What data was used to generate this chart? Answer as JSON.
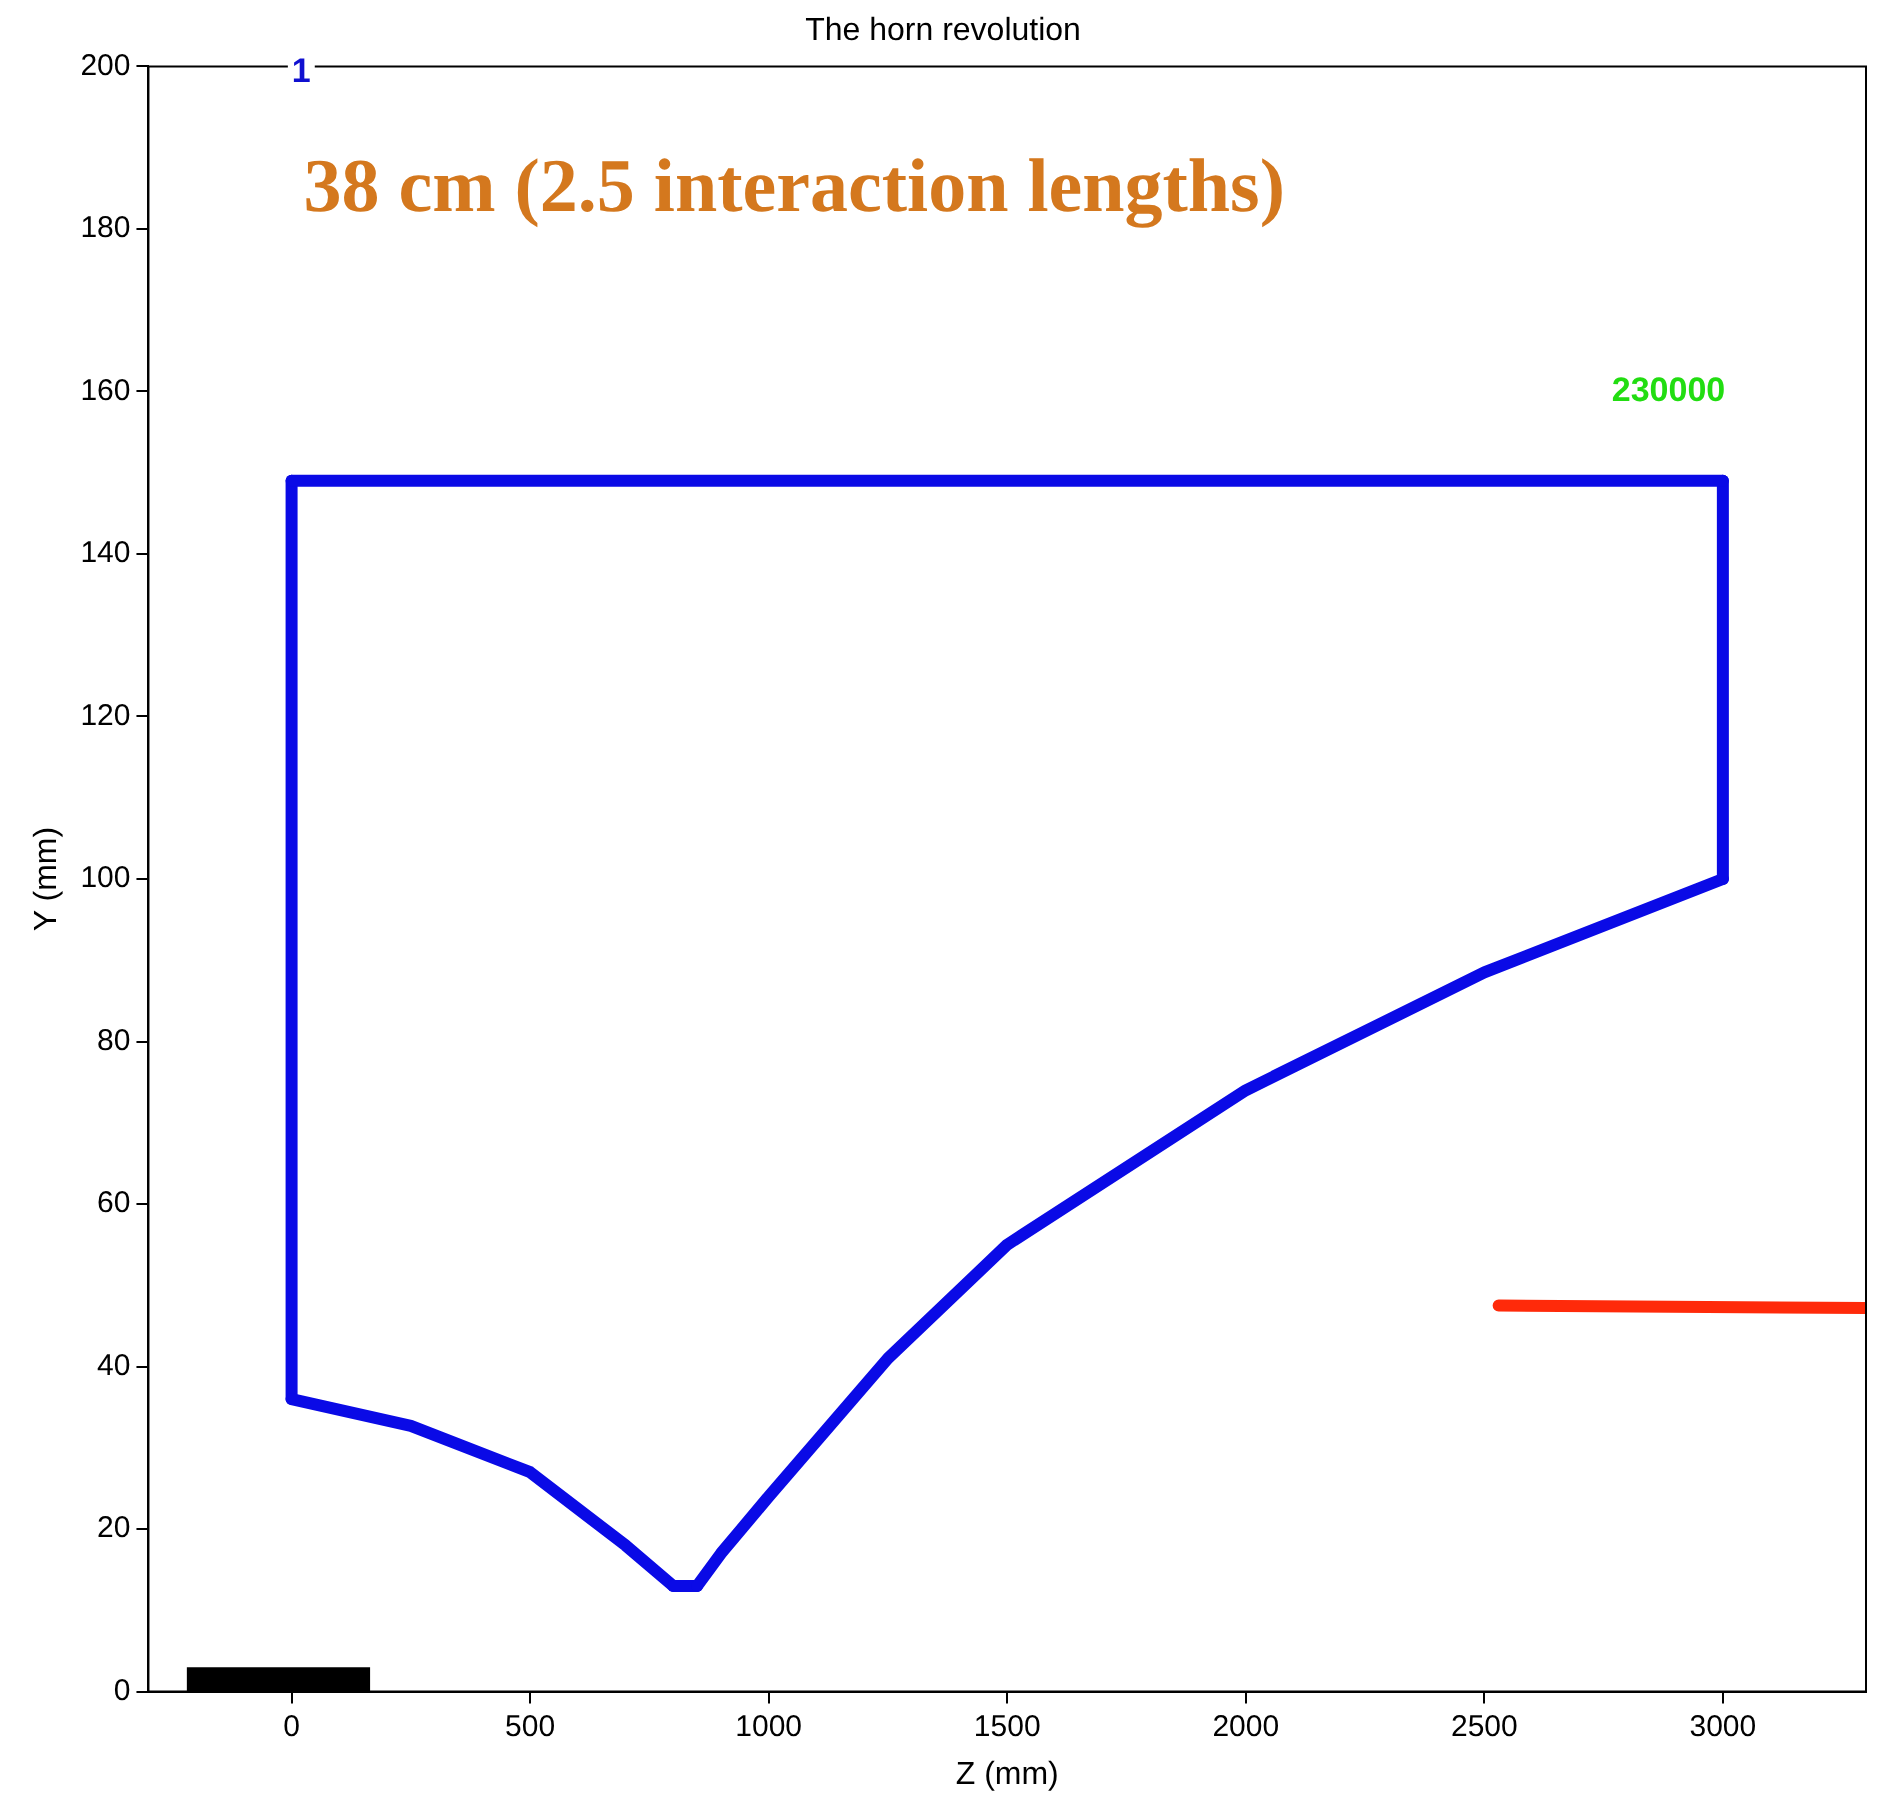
{
  "chart_data": {
    "type": "line",
    "title": "The horn revolution",
    "xlabel": "Z (mm)",
    "ylabel": "Y (mm)",
    "series": [
      {
        "color": "#0a0ae6",
        "x": [
          0,
          3000
        ],
        "values": [
          149,
          149
        ]
      },
      {
        "color": "#0a0ae6",
        "x": [
          3000,
          3000
        ],
        "values": [
          149,
          100
        ]
      },
      {
        "color": "#0a0ae6",
        "x": [
          850,
          900,
          1000,
          1250,
          1500,
          2000,
          2500,
          3000
        ],
        "values": [
          13,
          17,
          24,
          41,
          55,
          74,
          88.5,
          100
        ]
      },
      {
        "color": "#0a0ae6",
        "x": [
          800,
          850
        ],
        "values": [
          13,
          13
        ]
      },
      {
        "color": "#0a0ae6",
        "x": [
          0,
          250,
          500,
          700,
          800
        ],
        "values": [
          36,
          32.7,
          27,
          18,
          13
        ]
      },
      {
        "color": "#0a0ae6",
        "x": [
          0,
          0
        ],
        "values": [
          36,
          149
        ]
      },
      {
        "color": "#ff2a0a",
        "x": [
          2530,
          3300
        ],
        "values": [
          47.5,
          47.2
        ]
      },
      {
        "type": "area",
        "color": "#000000",
        "x": [
          -220,
          165
        ],
        "values": [
          3,
          3
        ]
      }
    ],
    "xlim": [
      -300,
      3300
    ],
    "xticks": [
      0,
      500,
      1000,
      1500,
      2000,
      2500,
      3000
    ],
    "ylim": [
      0,
      200
    ],
    "yticks": [
      0,
      20,
      40,
      60,
      80,
      100,
      120,
      140,
      160,
      180,
      200
    ],
    "grid": false,
    "legend": false,
    "marker": "none",
    "line_style": "solid",
    "annotations": [
      "1",
      "230000",
      "38 cm (2.5 interaction lengths)"
    ]
  }
}
